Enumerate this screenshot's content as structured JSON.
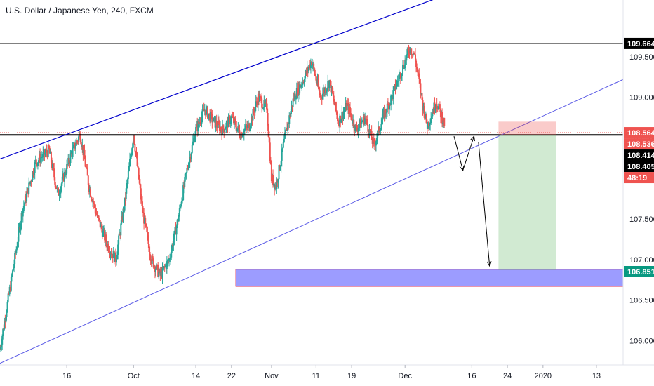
{
  "chart_data": {
    "type": "candlestick",
    "title": "U.S. Dollar / Japanese Yen, 240, FXCM",
    "ylim": [
      105.7,
      110.2
    ],
    "y_ticks": [
      "109.500",
      "109.000",
      "108.500",
      "107.500",
      "107.000",
      "106.500",
      "106.000"
    ],
    "y_tick_values": [
      109.5,
      109.0,
      108.5,
      107.5,
      107.0,
      106.5,
      106.0
    ],
    "x_ticks": [
      "16",
      "Oct",
      "14",
      "22",
      "Nov",
      "11",
      "19",
      "Dec",
      "16",
      "24",
      "2020",
      "13"
    ],
    "x_tick_days": [
      15,
      30,
      44,
      52,
      61,
      71,
      79,
      91,
      106,
      114,
      122,
      134
    ],
    "x_range_days": [
      0,
      140
    ],
    "price_path": [
      [
        0,
        105.9
      ],
      [
        3,
        106.9
      ],
      [
        5,
        107.6
      ],
      [
        8,
        108.2
      ],
      [
        11,
        108.35
      ],
      [
        13,
        107.8
      ],
      [
        16,
        108.3
      ],
      [
        18,
        108.55
      ],
      [
        20,
        107.9
      ],
      [
        22,
        107.5
      ],
      [
        24,
        107.2
      ],
      [
        26,
        107.0
      ],
      [
        28,
        107.7
      ],
      [
        30,
        108.55
      ],
      [
        32,
        107.6
      ],
      [
        34,
        107.0
      ],
      [
        36,
        106.8
      ],
      [
        38,
        107.0
      ],
      [
        40,
        107.5
      ],
      [
        42,
        108.1
      ],
      [
        44,
        108.6
      ],
      [
        46,
        108.85
      ],
      [
        48,
        108.7
      ],
      [
        50,
        108.6
      ],
      [
        52,
        108.75
      ],
      [
        54,
        108.55
      ],
      [
        56,
        108.65
      ],
      [
        58,
        109.0
      ],
      [
        60,
        108.85
      ],
      [
        61,
        108.0
      ],
      [
        62,
        107.9
      ],
      [
        64,
        108.5
      ],
      [
        66,
        109.0
      ],
      [
        68,
        109.2
      ],
      [
        70,
        109.45
      ],
      [
        72,
        109.0
      ],
      [
        74,
        109.2
      ],
      [
        76,
        108.7
      ],
      [
        78,
        108.9
      ],
      [
        80,
        108.6
      ],
      [
        82,
        108.75
      ],
      [
        84,
        108.4
      ],
      [
        86,
        108.75
      ],
      [
        88,
        109.0
      ],
      [
        90,
        109.3
      ],
      [
        92,
        109.6
      ],
      [
        93,
        109.55
      ],
      [
        94,
        109.25
      ],
      [
        95,
        108.9
      ],
      [
        96,
        108.65
      ],
      [
        98,
        108.95
      ],
      [
        100,
        108.65
      ]
    ],
    "price_labels": [
      {
        "value": 109.664,
        "text": "109.664",
        "bg": "#000000",
        "fg": "#ffffff"
      },
      {
        "value": 108.564,
        "text": "108.564",
        "bg": "#ef5350",
        "fg": "#ffffff"
      },
      {
        "value": 108.536,
        "text": "108.536",
        "bg": "#ef5350",
        "fg": "#ffffff"
      },
      {
        "value": 108.38,
        "text": "48:19",
        "bg": "#ef5350",
        "fg": "#ffffff"
      },
      {
        "value": 108.414,
        "text": "108.414",
        "bg": "#000000",
        "fg": "#ffffff"
      },
      {
        "value": 108.405,
        "text": "108.405",
        "bg": "#000000",
        "fg": "#ffffff"
      },
      {
        "value": 106.851,
        "text": "106.851",
        "bg": "#089981",
        "fg": "#ffffff"
      }
    ],
    "levels": [
      {
        "value": 109.664,
        "color": "#000000",
        "kind": "solid"
      },
      {
        "value": 108.564,
        "color": "#ef5350",
        "kind": "dotted"
      },
      {
        "value": 108.536,
        "color": "#000000",
        "kind": "thick"
      }
    ],
    "channel": {
      "upper": [
        [
          0,
          108.24
        ],
        [
          102,
          110.3
        ]
      ],
      "lower": [
        [
          0,
          105.72
        ],
        [
          140,
          109.22
        ]
      ]
    },
    "demand_zone": {
      "x0": 53,
      "x1": 140,
      "y_top": 106.88,
      "y_bottom": 106.67
    },
    "position": {
      "x0": 112,
      "x1": 125,
      "entry": 108.536,
      "stop": 108.7,
      "target": 106.87
    },
    "arrows": [
      [
        [
          102,
          108.52
        ],
        [
          104,
          108.1
        ]
      ],
      [
        [
          104,
          108.1
        ],
        [
          106.5,
          108.52
        ]
      ],
      [
        [
          107.5,
          108.45
        ],
        [
          110,
          106.92
        ]
      ]
    ],
    "colors": {
      "up": "#26a69a",
      "down": "#ef5350",
      "channel": "#0000cc",
      "zone": "#9c9cff",
      "zone_border": "#cc0033"
    }
  }
}
